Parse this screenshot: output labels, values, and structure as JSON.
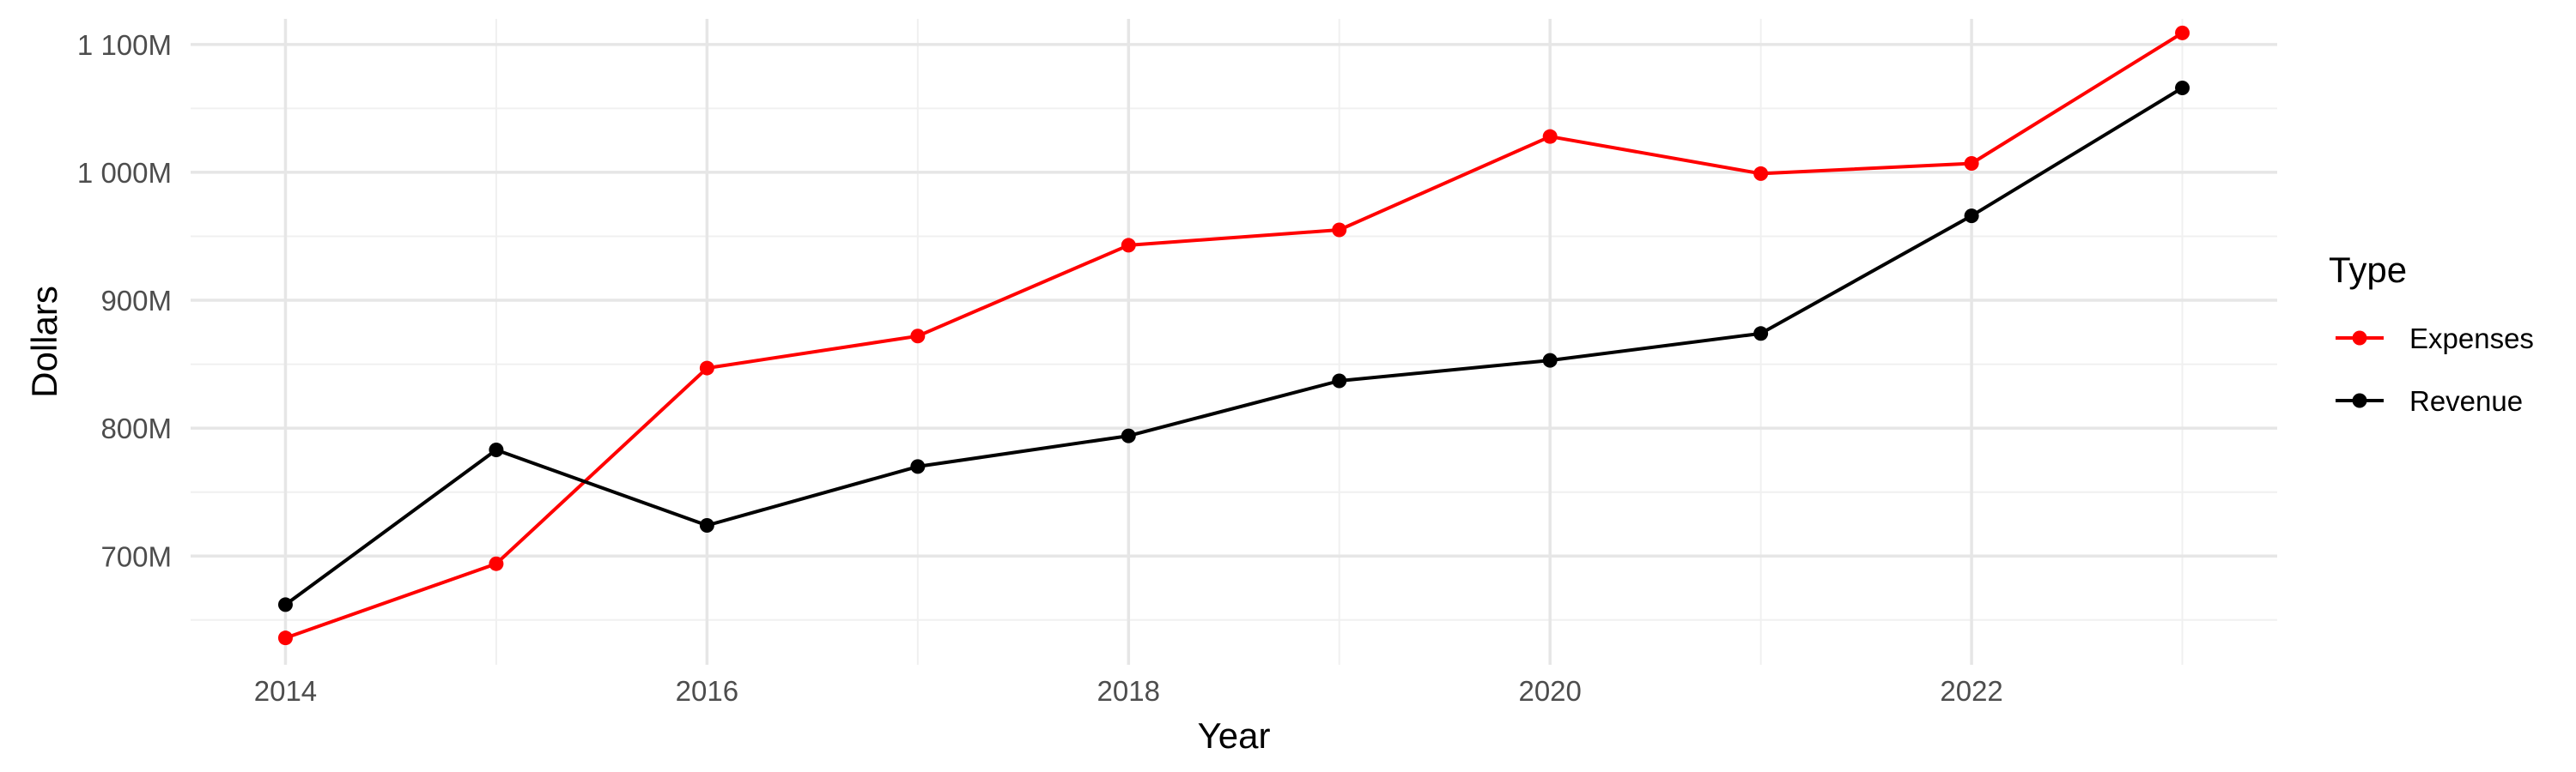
{
  "chart_data": {
    "type": "line",
    "title": "",
    "xlabel": "Year",
    "ylabel": "Dollars",
    "x": [
      2014,
      2015,
      2016,
      2017,
      2018,
      2019,
      2020,
      2021,
      2022,
      2023
    ],
    "xlim": [
      2013.55,
      2023.45
    ],
    "ylim": [
      615,
      1120
    ],
    "x_ticks": [
      {
        "value": 2014,
        "label": "2014"
      },
      {
        "value": 2016,
        "label": "2016"
      },
      {
        "value": 2018,
        "label": "2018"
      },
      {
        "value": 2020,
        "label": "2020"
      },
      {
        "value": 2022,
        "label": "2022"
      }
    ],
    "y_ticks": [
      {
        "value": 700,
        "label": "700M"
      },
      {
        "value": 800,
        "label": "800M"
      },
      {
        "value": 900,
        "label": "900M"
      },
      {
        "value": 1000,
        "label": "1 000M"
      },
      {
        "value": 1100,
        "label": "1 100M"
      }
    ],
    "y_unit": "millions of dollars",
    "grid": true,
    "legend": {
      "title": "Type",
      "position": "right"
    },
    "series": [
      {
        "name": "Expenses",
        "color": "#ff0000",
        "values": [
          636,
          694,
          847,
          872,
          943,
          955,
          1028,
          999,
          1007,
          1109
        ]
      },
      {
        "name": "Revenue",
        "color": "#000000",
        "values": [
          662,
          783,
          724,
          770,
          794,
          837,
          853,
          874,
          966,
          1066
        ]
      }
    ]
  }
}
